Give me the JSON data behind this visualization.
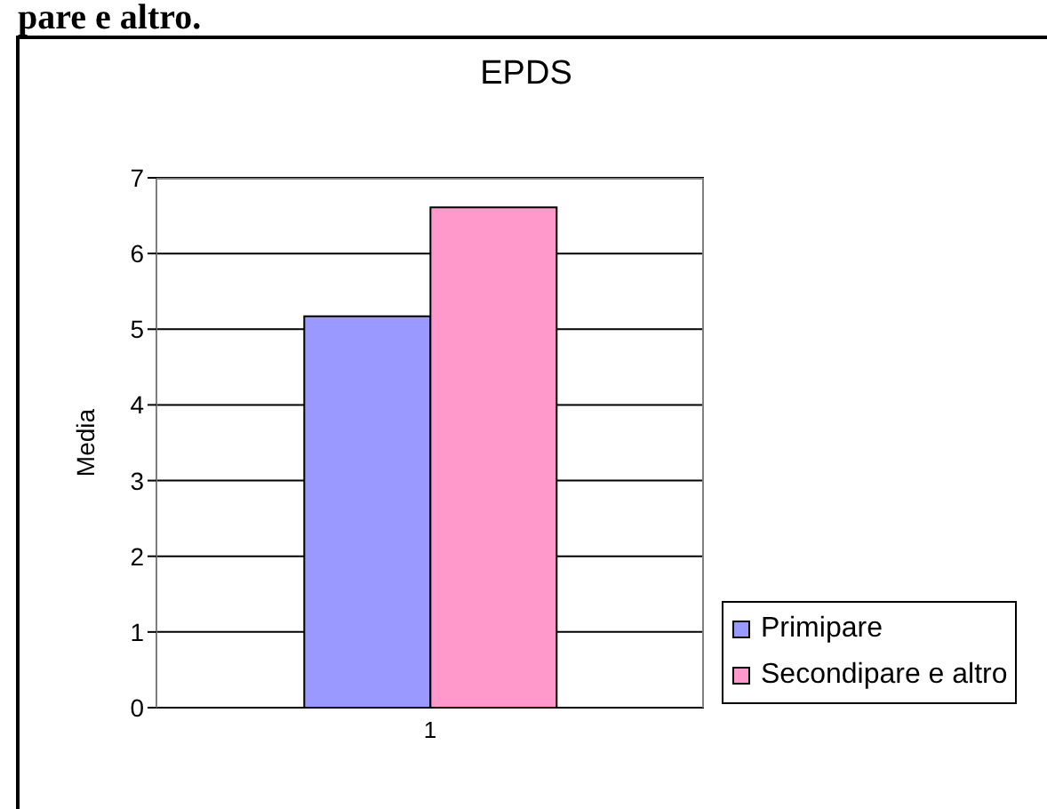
{
  "chart_data": {
    "type": "bar",
    "title": "EPDS",
    "ylabel": "Media",
    "annotations": [
      "pare e altro."
    ],
    "categories": [
      "1"
    ],
    "series": [
      {
        "name": "Primipare",
        "color": "#9999ff",
        "values": [
          5.17
        ]
      },
      {
        "name": "Secondipare e altro",
        "color": "#ff99cc",
        "values": [
          6.61
        ]
      }
    ],
    "ylim": [
      0,
      7
    ],
    "yticks": [
      0,
      1,
      2,
      3,
      4,
      5,
      6,
      7
    ],
    "grid": "y",
    "legend": "right"
  }
}
